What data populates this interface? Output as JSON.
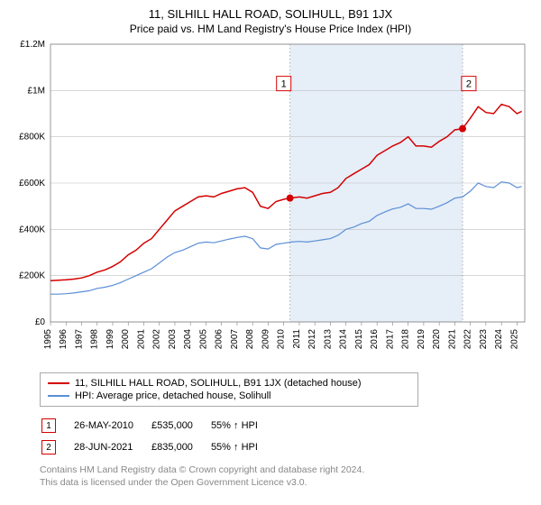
{
  "title": "11, SILHILL HALL ROAD, SOLIHULL, B91 1JX",
  "subtitle": "Price paid vs. HM Land Registry's House Price Index (HPI)",
  "chart": {
    "type": "line",
    "background_color": "#ffffff",
    "grid_color": "#bfbfbf",
    "axis_color": "#808080",
    "tick_label_fontsize": 10,
    "tick_label_color": "#000000",
    "x": {
      "min": 1995,
      "max": 2025.5,
      "ticks": [
        1995,
        1996,
        1997,
        1998,
        1999,
        2000,
        2001,
        2002,
        2003,
        2004,
        2005,
        2006,
        2007,
        2008,
        2009,
        2010,
        2011,
        2012,
        2013,
        2014,
        2015,
        2016,
        2017,
        2018,
        2019,
        2020,
        2021,
        2022,
        2023,
        2024,
        2025
      ],
      "tick_labels": [
        "1995",
        "1996",
        "1997",
        "1998",
        "1999",
        "2000",
        "2001",
        "2002",
        "2003",
        "2004",
        "2005",
        "2006",
        "2007",
        "2008",
        "2009",
        "2010",
        "2011",
        "2012",
        "2013",
        "2014",
        "2015",
        "2016",
        "2017",
        "2018",
        "2019",
        "2020",
        "2021",
        "2022",
        "2023",
        "2024",
        "2025"
      ],
      "rotate": -90
    },
    "y": {
      "min": 0,
      "max": 1200000,
      "ticks": [
        0,
        200000,
        400000,
        600000,
        800000,
        1000000,
        1200000
      ],
      "tick_labels": [
        "£0",
        "£200K",
        "£400K",
        "£600K",
        "£800K",
        "£1M",
        "£1.2M"
      ]
    },
    "highlight_band": {
      "from": 2010.4,
      "to": 2021.5,
      "fill": "#e6eef8"
    },
    "series": [
      {
        "name": "11, SILHILL HALL ROAD, SOLIHULL, B91 1JX (detached house)",
        "color": "#d40000",
        "line_width": 1.5,
        "points": [
          [
            1995,
            178000
          ],
          [
            1995.5,
            180000
          ],
          [
            1996,
            182000
          ],
          [
            1996.5,
            185000
          ],
          [
            1997,
            190000
          ],
          [
            1997.5,
            200000
          ],
          [
            1998,
            215000
          ],
          [
            1998.5,
            225000
          ],
          [
            1999,
            240000
          ],
          [
            1999.5,
            260000
          ],
          [
            2000,
            290000
          ],
          [
            2000.5,
            310000
          ],
          [
            2001,
            340000
          ],
          [
            2001.5,
            360000
          ],
          [
            2002,
            400000
          ],
          [
            2002.5,
            440000
          ],
          [
            2003,
            480000
          ],
          [
            2003.5,
            500000
          ],
          [
            2004,
            520000
          ],
          [
            2004.5,
            540000
          ],
          [
            2005,
            545000
          ],
          [
            2005.5,
            540000
          ],
          [
            2006,
            555000
          ],
          [
            2006.5,
            565000
          ],
          [
            2007,
            575000
          ],
          [
            2007.5,
            580000
          ],
          [
            2008,
            560000
          ],
          [
            2008.5,
            500000
          ],
          [
            2009,
            490000
          ],
          [
            2009.5,
            520000
          ],
          [
            2010,
            530000
          ],
          [
            2010.4,
            535000
          ],
          [
            2011,
            540000
          ],
          [
            2011.5,
            535000
          ],
          [
            2012,
            545000
          ],
          [
            2012.5,
            555000
          ],
          [
            2013,
            560000
          ],
          [
            2013.5,
            580000
          ],
          [
            2014,
            620000
          ],
          [
            2014.5,
            640000
          ],
          [
            2015,
            660000
          ],
          [
            2015.5,
            680000
          ],
          [
            2016,
            720000
          ],
          [
            2016.5,
            740000
          ],
          [
            2017,
            760000
          ],
          [
            2017.5,
            775000
          ],
          [
            2018,
            800000
          ],
          [
            2018.5,
            760000
          ],
          [
            2019,
            760000
          ],
          [
            2019.5,
            755000
          ],
          [
            2020,
            780000
          ],
          [
            2020.5,
            800000
          ],
          [
            2021,
            830000
          ],
          [
            2021.5,
            835000
          ],
          [
            2022,
            880000
          ],
          [
            2022.5,
            930000
          ],
          [
            2023,
            905000
          ],
          [
            2023.5,
            900000
          ],
          [
            2024,
            940000
          ],
          [
            2024.5,
            930000
          ],
          [
            2025,
            900000
          ],
          [
            2025.3,
            910000
          ]
        ]
      },
      {
        "name": "HPI: Average price, detached house, Solihull",
        "color": "#5b8fd6",
        "line_width": 1.2,
        "points": [
          [
            1995,
            120000
          ],
          [
            1995.5,
            120000
          ],
          [
            1996,
            122000
          ],
          [
            1996.5,
            125000
          ],
          [
            1997,
            130000
          ],
          [
            1997.5,
            135000
          ],
          [
            1998,
            145000
          ],
          [
            1998.5,
            150000
          ],
          [
            1999,
            158000
          ],
          [
            1999.5,
            170000
          ],
          [
            2000,
            185000
          ],
          [
            2000.5,
            200000
          ],
          [
            2001,
            215000
          ],
          [
            2001.5,
            230000
          ],
          [
            2002,
            255000
          ],
          [
            2002.5,
            280000
          ],
          [
            2003,
            300000
          ],
          [
            2003.5,
            310000
          ],
          [
            2004,
            325000
          ],
          [
            2004.5,
            340000
          ],
          [
            2005,
            345000
          ],
          [
            2005.5,
            342000
          ],
          [
            2006,
            350000
          ],
          [
            2006.5,
            358000
          ],
          [
            2007,
            365000
          ],
          [
            2007.5,
            370000
          ],
          [
            2008,
            360000
          ],
          [
            2008.5,
            320000
          ],
          [
            2009,
            315000
          ],
          [
            2009.5,
            335000
          ],
          [
            2010,
            340000
          ],
          [
            2010.5,
            345000
          ],
          [
            2011,
            348000
          ],
          [
            2011.5,
            345000
          ],
          [
            2012,
            350000
          ],
          [
            2012.5,
            355000
          ],
          [
            2013,
            360000
          ],
          [
            2013.5,
            375000
          ],
          [
            2014,
            400000
          ],
          [
            2014.5,
            410000
          ],
          [
            2015,
            425000
          ],
          [
            2015.5,
            435000
          ],
          [
            2016,
            460000
          ],
          [
            2016.5,
            475000
          ],
          [
            2017,
            488000
          ],
          [
            2017.5,
            495000
          ],
          [
            2018,
            510000
          ],
          [
            2018.5,
            490000
          ],
          [
            2019,
            490000
          ],
          [
            2019.5,
            487000
          ],
          [
            2020,
            500000
          ],
          [
            2020.5,
            515000
          ],
          [
            2021,
            535000
          ],
          [
            2021.5,
            540000
          ],
          [
            2022,
            565000
          ],
          [
            2022.5,
            600000
          ],
          [
            2023,
            585000
          ],
          [
            2023.5,
            580000
          ],
          [
            2024,
            605000
          ],
          [
            2024.5,
            600000
          ],
          [
            2025,
            580000
          ],
          [
            2025.3,
            585000
          ]
        ]
      }
    ],
    "markers": [
      {
        "label": "1",
        "x": 2010.4,
        "y": 535000,
        "badge_x": 2010.0,
        "badge_y": 1030000,
        "dot_color": "#d40000",
        "badge_border": "#d40000",
        "badge_text": "#000000"
      },
      {
        "label": "2",
        "x": 2021.5,
        "y": 835000,
        "badge_x": 2021.9,
        "badge_y": 1030000,
        "dot_color": "#d40000",
        "badge_border": "#d40000",
        "badge_text": "#000000"
      }
    ]
  },
  "legend": {
    "rows": [
      {
        "color": "#d40000",
        "label": "11, SILHILL HALL ROAD, SOLIHULL, B91 1JX (detached house)"
      },
      {
        "color": "#5b8fd6",
        "label": "HPI: Average price, detached house, Solihull"
      }
    ]
  },
  "marker_table": {
    "rows": [
      {
        "badge": "1",
        "badge_border": "#d40000",
        "date": "26-MAY-2010",
        "price": "£535,000",
        "pct": "55% ↑ HPI"
      },
      {
        "badge": "2",
        "badge_border": "#d40000",
        "date": "28-JUN-2021",
        "price": "£835,000",
        "pct": "55% ↑ HPI"
      }
    ]
  },
  "footnote_line1": "Contains HM Land Registry data © Crown copyright and database right 2024.",
  "footnote_line2": "This data is licensed under the Open Government Licence v3.0."
}
